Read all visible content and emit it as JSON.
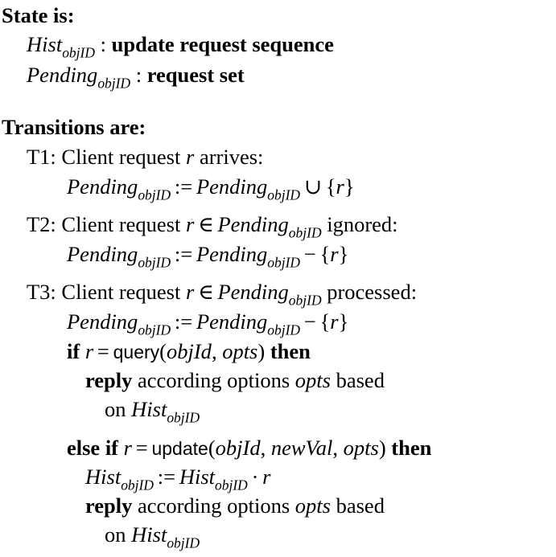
{
  "state": {
    "heading": "State is:",
    "vars": [
      {
        "name": "Hist",
        "sub": "objID",
        "sep": " : ",
        "type": "update request sequence"
      },
      {
        "name": "Pending",
        "sub": "objID",
        "sep": " : ",
        "type": "request set"
      }
    ]
  },
  "transitions": {
    "heading": "Transitions are:",
    "t1": {
      "label": "T1: Client request",
      "var": "r",
      "text": " arrives:",
      "assign": {
        "lhs": "Pending",
        "sub": "objID",
        "op": ":=",
        "rhs": "Pending",
        "rsub": "objID",
        "rop": "∪",
        "set": "{",
        "setvar": "r",
        "setclose": "}"
      }
    },
    "t2": {
      "label": "T2: Client request",
      "var": "r",
      "in": "∈",
      "set": "Pending",
      "sub": "objID",
      "text": " ignored:",
      "assign": {
        "lhs": "Pending",
        "sub": "objID",
        "op": ":=",
        "rhs": "Pending",
        "rsub": "objID",
        "rop": "−",
        "set": "{",
        "setvar": "r",
        "setclose": "}"
      }
    },
    "t3": {
      "label": "T3: Client request",
      "var": "r",
      "in": "∈",
      "set": "Pending",
      "sub": "objID",
      "text": " processed:",
      "assign": {
        "lhs": "Pending",
        "sub": "objID",
        "op": ":=",
        "rhs": "Pending",
        "rsub": "objID",
        "rop": "−",
        "set": "{",
        "setvar": "r",
        "setclose": "}"
      },
      "if_kw": "if",
      "if_var": "r",
      "if_eq": "=",
      "query_fn": "query",
      "query_args_open": "(",
      "query_arg1": "objId",
      "query_comma": ", ",
      "query_arg2": "opts",
      "query_args_close": ")",
      "then_kw": "then",
      "reply_kw": "reply",
      "reply_text": " according options ",
      "reply_opts": "opts",
      "reply_based": " based",
      "on_text": "on ",
      "on_var": "Hist",
      "on_sub": "objID",
      "elseif_kw": "else if",
      "elseif_var": "r",
      "elseif_eq": "=",
      "update_fn": "update",
      "update_open": "(",
      "update_arg1": "objId",
      "update_c1": ", ",
      "update_arg2": "newVal",
      "update_c2": ", ",
      "update_arg3": "opts",
      "update_close": ")",
      "then2_kw": "then",
      "hist_lhs": "Hist",
      "hist_sub": "objID",
      "hist_op": ":=",
      "hist_rhs": "Hist",
      "hist_rsub": "objID",
      "hist_dot": "·",
      "hist_r": "r",
      "reply2_kw": "reply",
      "reply2_text": " according options ",
      "reply2_opts": "opts",
      "reply2_based": " based",
      "on2_text": "on ",
      "on2_var": "Hist",
      "on2_sub": "objID"
    }
  }
}
